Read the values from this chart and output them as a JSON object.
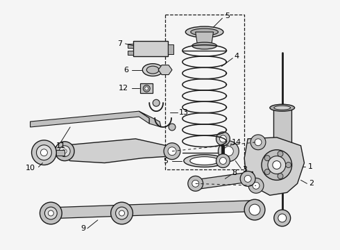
{
  "background_color": "#f5f5f5",
  "line_color": "#1a1a1a",
  "label_color": "#000000",
  "fig_width": 4.9,
  "fig_height": 3.6,
  "dpi": 100
}
